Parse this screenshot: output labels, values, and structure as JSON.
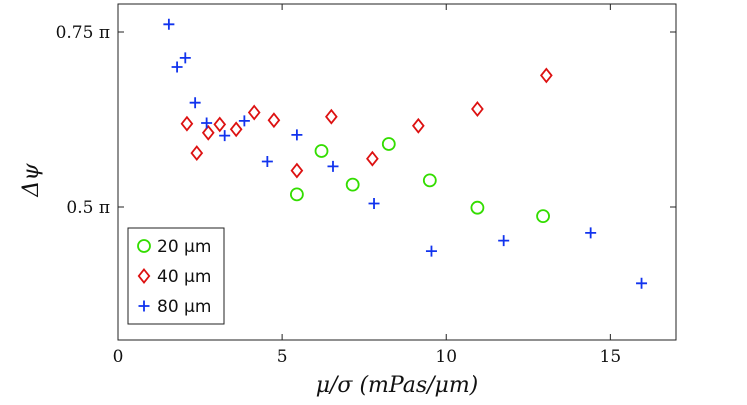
{
  "chart_data": {
    "type": "scatter",
    "title": "",
    "xlabel": "μ/σ (mPas/μm)",
    "ylabel": "Δψ",
    "xlim": [
      0,
      17
    ],
    "ylim": [
      0.31,
      0.79
    ],
    "xticks": [
      0,
      5,
      10,
      15
    ],
    "xtick_labels": [
      "0",
      "5",
      "10",
      "15"
    ],
    "yticks": [
      0.5,
      0.75
    ],
    "ytick_labels": [
      "0.5 π",
      "0.75 π"
    ],
    "grid": false,
    "legend_position": "bottom-left",
    "series": [
      {
        "name": "20 μm",
        "marker": "circle",
        "color": "#33dd00",
        "points": [
          [
            5.45,
            0.518
          ],
          [
            6.2,
            0.58
          ],
          [
            7.15,
            0.532
          ],
          [
            8.25,
            0.59
          ],
          [
            9.5,
            0.538
          ],
          [
            10.95,
            0.499
          ],
          [
            12.95,
            0.487
          ]
        ]
      },
      {
        "name": "40 μm",
        "marker": "diamond",
        "color": "#dd1111",
        "points": [
          [
            2.1,
            0.619
          ],
          [
            2.4,
            0.577
          ],
          [
            2.75,
            0.606
          ],
          [
            3.1,
            0.618
          ],
          [
            3.6,
            0.611
          ],
          [
            4.15,
            0.635
          ],
          [
            4.75,
            0.624
          ],
          [
            5.45,
            0.552
          ],
          [
            6.5,
            0.629
          ],
          [
            7.75,
            0.569
          ],
          [
            9.15,
            0.616
          ],
          [
            10.95,
            0.64
          ],
          [
            13.05,
            0.688
          ]
        ]
      },
      {
        "name": "80 μm",
        "marker": "plus",
        "color": "#1133ee",
        "points": [
          [
            1.55,
            0.761
          ],
          [
            1.8,
            0.7
          ],
          [
            2.05,
            0.713
          ],
          [
            2.35,
            0.649
          ],
          [
            2.7,
            0.62
          ],
          [
            3.25,
            0.602
          ],
          [
            3.85,
            0.623
          ],
          [
            4.55,
            0.565
          ],
          [
            5.45,
            0.603
          ],
          [
            6.55,
            0.558
          ],
          [
            7.8,
            0.505
          ],
          [
            9.55,
            0.437
          ],
          [
            11.75,
            0.452
          ],
          [
            14.4,
            0.463
          ],
          [
            15.95,
            0.391
          ]
        ]
      }
    ]
  }
}
